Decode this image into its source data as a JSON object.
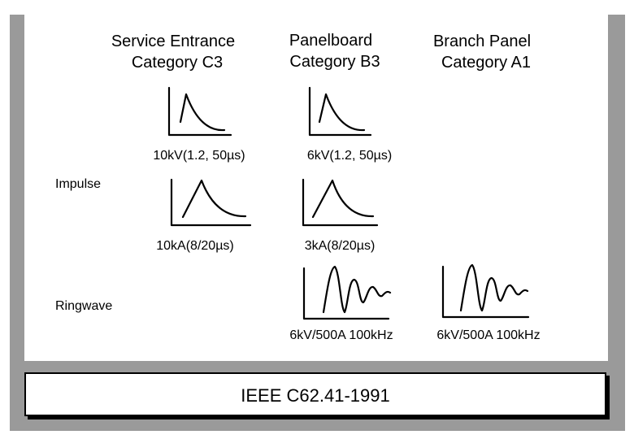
{
  "columns": [
    {
      "id": "c3",
      "line1": "Service Entrance",
      "line2": "Category C3"
    },
    {
      "id": "b3",
      "line1": "Panelboard",
      "line2": "Category B3"
    },
    {
      "id": "a1",
      "line1": "Branch Panel",
      "line2": "Category A1"
    }
  ],
  "rows": {
    "impulse": "Impulse",
    "ringwave": "Ringwave"
  },
  "waveforms": {
    "c3_voltage": "10kV(1.2, 50µs)",
    "b3_voltage": "6kV(1.2, 50µs)",
    "c3_current": "10kA(8/20µs)",
    "b3_current": "3kA(8/20µs)",
    "b3_ring": "6kV/500A 100kHz",
    "a1_ring": "6kV/500A 100kHz"
  },
  "footer": "IEEE C62.41-1991"
}
